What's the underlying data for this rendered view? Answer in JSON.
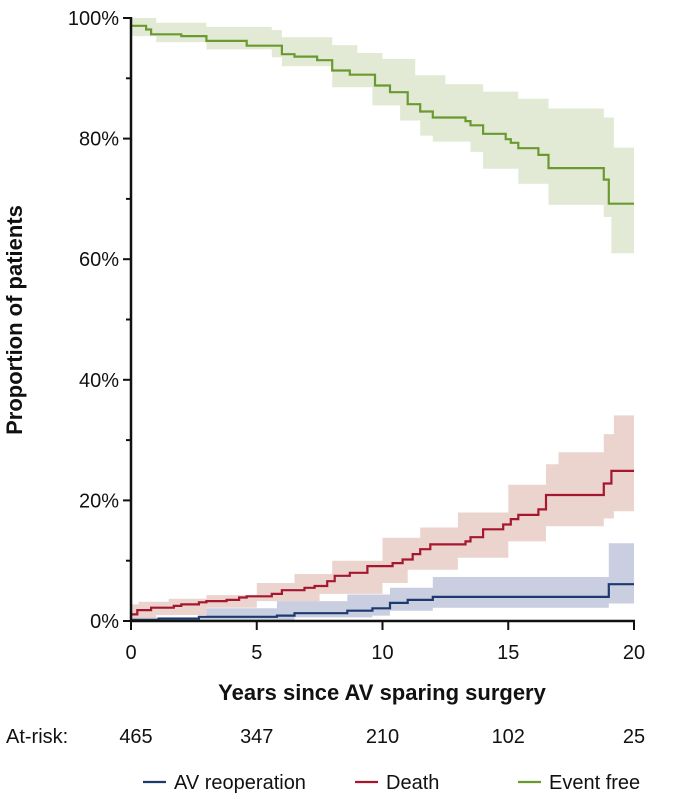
{
  "chart_data": {
    "type": "line",
    "title": "",
    "xlabel": "Years since AV sparing surgery",
    "ylabel": "Proportion of patients",
    "xlim": [
      0,
      20
    ],
    "ylim": [
      0,
      100
    ],
    "x_ticks": [
      "0",
      "5",
      "10",
      "15",
      "20"
    ],
    "x_tick_values": [
      0,
      5,
      10,
      15,
      20
    ],
    "y_ticks": [
      "0%",
      "20%",
      "40%",
      "60%",
      "80%",
      "100%"
    ],
    "y_tick_values": [
      0,
      20,
      40,
      60,
      80,
      100
    ],
    "y_minor_ticks": [
      10,
      30,
      50,
      70,
      90
    ],
    "legend_position": "bottom",
    "at_risk": {
      "label": "At-risk:",
      "times": [
        0,
        5,
        10,
        15,
        20
      ],
      "values": [
        "465",
        "347",
        "210",
        "102",
        "25"
      ]
    },
    "series": [
      {
        "name": "AV reoperation",
        "color": "#1c3a6e",
        "band_color": "#c0c6dc",
        "steps": [
          [
            0,
            0.2
          ],
          [
            1.1,
            0.4
          ],
          [
            2.7,
            0.7
          ],
          [
            5.8,
            0.9
          ],
          [
            6.5,
            1.3
          ],
          [
            8.6,
            1.7
          ],
          [
            9.6,
            2.1
          ],
          [
            10.3,
            3.0
          ],
          [
            11.0,
            3.5
          ],
          [
            12.0,
            4.0
          ],
          [
            19.0,
            6.1
          ]
        ],
        "upper": [
          [
            0,
            0.6
          ],
          [
            3.0,
            2.1
          ],
          [
            5.8,
            3.3
          ],
          [
            8.6,
            4.4
          ],
          [
            10.3,
            5.5
          ],
          [
            12.0,
            7.3
          ],
          [
            19.0,
            12.9
          ]
        ],
        "lower": [
          [
            0,
            0
          ],
          [
            6.5,
            0.6
          ],
          [
            9.6,
            0.9
          ],
          [
            10.3,
            1.7
          ],
          [
            12.0,
            2.2
          ],
          [
            19.0,
            2.9
          ]
        ]
      },
      {
        "name": "Death",
        "color": "#a5162f",
        "band_color": "#e8ccc6",
        "steps": [
          [
            0,
            1.1
          ],
          [
            0.25,
            1.8
          ],
          [
            0.8,
            2.2
          ],
          [
            1.7,
            2.5
          ],
          [
            2.0,
            2.75
          ],
          [
            2.7,
            3.1
          ],
          [
            3.0,
            3.3
          ],
          [
            3.8,
            3.5
          ],
          [
            4.3,
            3.9
          ],
          [
            4.6,
            4.1
          ],
          [
            5.6,
            4.5
          ],
          [
            6.0,
            5.1
          ],
          [
            6.9,
            5.5
          ],
          [
            7.3,
            5.8
          ],
          [
            7.8,
            6.6
          ],
          [
            8.1,
            7.5
          ],
          [
            8.7,
            8.0
          ],
          [
            9.4,
            9.1
          ],
          [
            10.4,
            9.6
          ],
          [
            10.8,
            10.2
          ],
          [
            11.2,
            11.1
          ],
          [
            11.5,
            11.9
          ],
          [
            11.9,
            12.7
          ],
          [
            13.3,
            13.2
          ],
          [
            13.5,
            13.9
          ],
          [
            14.0,
            15.2
          ],
          [
            14.8,
            16.0
          ],
          [
            15.1,
            16.9
          ],
          [
            15.4,
            17.6
          ],
          [
            16.2,
            18.5
          ],
          [
            16.5,
            20.9
          ],
          [
            18.8,
            22.8
          ],
          [
            19.1,
            24.9
          ]
        ],
        "upper": [
          [
            0,
            2.75
          ],
          [
            0.3,
            3.2
          ],
          [
            1.5,
            3.7
          ],
          [
            3.0,
            4.3
          ],
          [
            5.0,
            6.3
          ],
          [
            6.5,
            7.8
          ],
          [
            8.0,
            10.0
          ],
          [
            10.0,
            13.8
          ],
          [
            11.5,
            15.5
          ],
          [
            13.0,
            18.0
          ],
          [
            15.0,
            22.6
          ],
          [
            16.5,
            26.0
          ],
          [
            17.0,
            28.0
          ],
          [
            18.8,
            31.0
          ],
          [
            19.2,
            34.1
          ]
        ],
        "lower": [
          [
            0,
            0
          ],
          [
            1.0,
            1.0
          ],
          [
            3.0,
            2.2
          ],
          [
            5.0,
            3.3
          ],
          [
            7.5,
            4.5
          ],
          [
            10.0,
            6.3
          ],
          [
            11.0,
            8.5
          ],
          [
            13.0,
            10.5
          ],
          [
            15.0,
            13.2
          ],
          [
            16.5,
            15.7
          ],
          [
            18.8,
            17.0
          ],
          [
            19.2,
            18.2
          ]
        ]
      },
      {
        "name": "Event free",
        "color": "#6a9a2f",
        "band_color": "#dde6cf",
        "steps": [
          [
            0,
            98.7
          ],
          [
            0.6,
            98.1
          ],
          [
            0.8,
            97.3
          ],
          [
            2.0,
            97.0
          ],
          [
            3.0,
            96.2
          ],
          [
            4.6,
            95.4
          ],
          [
            6.0,
            94.0
          ],
          [
            6.5,
            93.6
          ],
          [
            7.4,
            93.0
          ],
          [
            8.0,
            91.3
          ],
          [
            8.7,
            90.6
          ],
          [
            9.7,
            88.8
          ],
          [
            10.3,
            87.7
          ],
          [
            11.0,
            85.7
          ],
          [
            11.5,
            84.5
          ],
          [
            12.0,
            83.5
          ],
          [
            13.3,
            82.9
          ],
          [
            13.5,
            82.2
          ],
          [
            14.0,
            80.8
          ],
          [
            14.9,
            79.9
          ],
          [
            15.1,
            79.3
          ],
          [
            15.4,
            78.4
          ],
          [
            16.2,
            77.3
          ],
          [
            16.6,
            75.1
          ],
          [
            18.8,
            73.2
          ],
          [
            19.0,
            69.2
          ]
        ],
        "upper": [
          [
            0,
            100
          ],
          [
            1.0,
            99.2
          ],
          [
            3.0,
            98.5
          ],
          [
            5.6,
            98.0
          ],
          [
            6.0,
            96.8
          ],
          [
            8.0,
            95.5
          ],
          [
            9.0,
            94.2
          ],
          [
            10.0,
            93.2
          ],
          [
            11.3,
            90.5
          ],
          [
            12.5,
            89.0
          ],
          [
            14.0,
            87.8
          ],
          [
            15.4,
            86.6
          ],
          [
            16.6,
            85.0
          ],
          [
            18.8,
            83.5
          ],
          [
            19.2,
            78.5
          ]
        ],
        "lower": [
          [
            0,
            97.0
          ],
          [
            1.0,
            96.0
          ],
          [
            3.0,
            94.8
          ],
          [
            5.6,
            93.5
          ],
          [
            6.0,
            92.0
          ],
          [
            8.0,
            88.5
          ],
          [
            9.6,
            85.5
          ],
          [
            10.7,
            83.0
          ],
          [
            11.5,
            80.5
          ],
          [
            12.0,
            79.5
          ],
          [
            13.5,
            77.8
          ],
          [
            14.0,
            75.0
          ],
          [
            15.4,
            72.5
          ],
          [
            16.6,
            69.0
          ],
          [
            18.8,
            67.0
          ],
          [
            19.1,
            61.0
          ]
        ]
      }
    ]
  }
}
